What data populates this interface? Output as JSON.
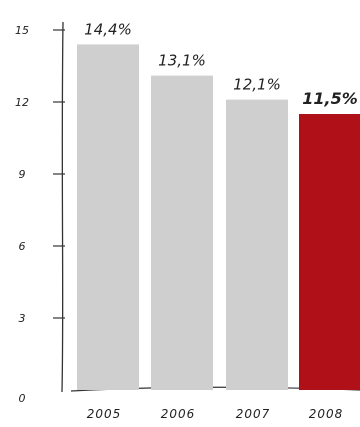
{
  "chart_data": {
    "type": "bar",
    "categories": [
      "2005",
      "2006",
      "2007",
      "2008"
    ],
    "values": [
      14.4,
      13.1,
      12.1,
      11.5
    ],
    "data_labels": [
      "14,4%",
      "13,1%",
      "12,1%",
      "11,5%"
    ],
    "y_ticks": [
      "0",
      "3",
      "6",
      "9",
      "12",
      "15"
    ],
    "ylim": [
      0,
      15
    ],
    "title": "",
    "xlabel": "",
    "ylabel": "",
    "grid": false,
    "highlight_index": 3,
    "colors": {
      "bar": "#cfcfd0",
      "highlight": "#b01119",
      "axis": "#333333",
      "text": "#222222"
    }
  }
}
